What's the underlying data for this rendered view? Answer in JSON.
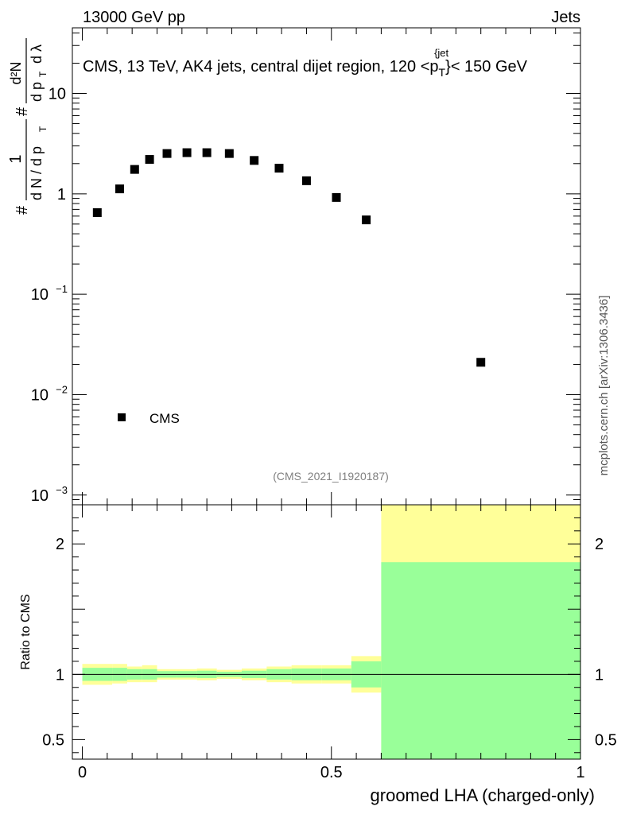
{
  "header": {
    "left": "13000 GeV pp",
    "right": "Jets"
  },
  "chart_data": [
    {
      "panel": "main",
      "type": "scatter",
      "title": "CMS, 13 TeV, AK4 jets, central dijet region, 120 <p",
      "title_sub": "T",
      "title_sup": "{jet",
      "title_tail": "}< 150 GeV",
      "ylabel": {
        "hash1": "#",
        "one": "1",
        "dN_over_dpT": "d N / d p",
        "sub_T1": "T",
        "hash2": "#",
        "d2N": "d²N",
        "dpT": "d p",
        "sub_T2": "T",
        "dlambda": "d λ"
      },
      "yscale": "log",
      "xlim": [
        -0.02,
        1.0
      ],
      "ylim": [
        0.0008,
        45
      ],
      "ytick_labels": [
        {
          "value": 10,
          "mantissa": "10",
          "exp": ""
        },
        {
          "value": 1,
          "mantissa": "1",
          "exp": ""
        },
        {
          "value": 0.1,
          "mantissa": "10",
          "exp": "−1"
        },
        {
          "value": 0.01,
          "mantissa": "10",
          "exp": "−2"
        },
        {
          "value": 0.001,
          "mantissa": "10",
          "exp": "−3"
        }
      ],
      "series": [
        {
          "name": "CMS",
          "marker": "square",
          "x": [
            0.03,
            0.075,
            0.105,
            0.135,
            0.17,
            0.21,
            0.25,
            0.295,
            0.345,
            0.395,
            0.45,
            0.51,
            0.57,
            0.8
          ],
          "y": [
            0.65,
            1.12,
            1.75,
            2.2,
            2.52,
            2.57,
            2.57,
            2.52,
            2.15,
            1.8,
            1.35,
            0.92,
            0.55,
            0.021
          ]
        }
      ],
      "legend": {
        "position": "bottom-left",
        "label": "CMS"
      },
      "annotation": "(CMS_2021_I1920187)"
    },
    {
      "panel": "ratio",
      "type": "area",
      "ylabel": "Ratio to CMS",
      "xlabel": "groomed LHA (charged-only)",
      "xlim": [
        -0.02,
        1.0
      ],
      "ylim": [
        0.35,
        2.3
      ],
      "xtick_labels": [
        {
          "value": 0,
          "label": "0"
        },
        {
          "value": 0.5,
          "label": "0.5"
        },
        {
          "value": 1,
          "label": "1"
        }
      ],
      "ytick_labels": [
        {
          "value": 2,
          "label": "2"
        },
        {
          "value": 1,
          "label": "1"
        },
        {
          "value": 0.5,
          "label": "0.5"
        }
      ],
      "reference_line": 1,
      "bins": [
        {
          "x0": 0.0,
          "x1": 0.06,
          "y_lo": 0.92,
          "y_hi": 1.08,
          "g_lo": 0.95,
          "g_hi": 1.05
        },
        {
          "x0": 0.06,
          "x1": 0.09,
          "y_lo": 0.93,
          "y_hi": 1.08,
          "g_lo": 0.95,
          "g_hi": 1.05
        },
        {
          "x0": 0.09,
          "x1": 0.12,
          "y_lo": 0.94,
          "y_hi": 1.06,
          "g_lo": 0.96,
          "g_hi": 1.04
        },
        {
          "x0": 0.12,
          "x1": 0.15,
          "y_lo": 0.94,
          "y_hi": 1.07,
          "g_lo": 0.96,
          "g_hi": 1.04
        },
        {
          "x0": 0.15,
          "x1": 0.19,
          "y_lo": 0.96,
          "y_hi": 1.04,
          "g_lo": 0.975,
          "g_hi": 1.025
        },
        {
          "x0": 0.19,
          "x1": 0.23,
          "y_lo": 0.96,
          "y_hi": 1.04,
          "g_lo": 0.975,
          "g_hi": 1.025
        },
        {
          "x0": 0.23,
          "x1": 0.27,
          "y_lo": 0.955,
          "y_hi": 1.045,
          "g_lo": 0.972,
          "g_hi": 1.028
        },
        {
          "x0": 0.27,
          "x1": 0.32,
          "y_lo": 0.965,
          "y_hi": 1.035,
          "g_lo": 0.98,
          "g_hi": 1.02
        },
        {
          "x0": 0.32,
          "x1": 0.37,
          "y_lo": 0.955,
          "y_hi": 1.045,
          "g_lo": 0.972,
          "g_hi": 1.028
        },
        {
          "x0": 0.37,
          "x1": 0.42,
          "y_lo": 0.94,
          "y_hi": 1.06,
          "g_lo": 0.96,
          "g_hi": 1.04
        },
        {
          "x0": 0.42,
          "x1": 0.48,
          "y_lo": 0.93,
          "y_hi": 1.07,
          "g_lo": 0.955,
          "g_hi": 1.045
        },
        {
          "x0": 0.48,
          "x1": 0.54,
          "y_lo": 0.93,
          "y_hi": 1.07,
          "g_lo": 0.955,
          "g_hi": 1.045
        },
        {
          "x0": 0.54,
          "x1": 0.6,
          "y_lo": 0.86,
          "y_hi": 1.14,
          "g_lo": 0.9,
          "g_hi": 1.1
        },
        {
          "x0": 0.6,
          "x1": 1.0,
          "y_lo": 0.35,
          "y_hi": 2.3,
          "g_lo": 0.35,
          "g_hi": 1.86
        }
      ],
      "colors": {
        "outer": "#ffff99",
        "inner": "#99ff99",
        "line": "#000000"
      }
    }
  ],
  "side_note": "mcplots.cern.ch [arXiv:1306.3436]",
  "colors": {
    "annotation": "#808080",
    "side_note": "#555555",
    "marker": "#000000"
  }
}
